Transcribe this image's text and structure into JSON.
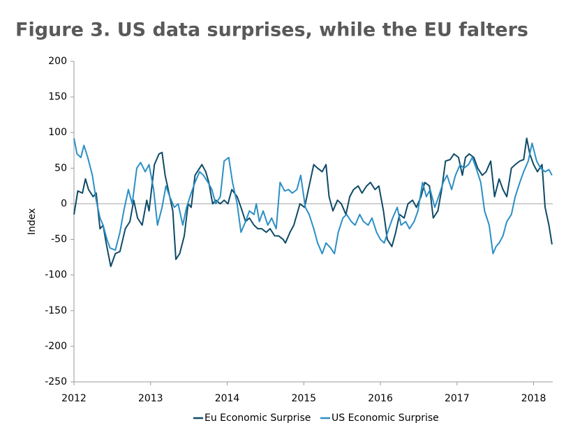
{
  "chart_data": {
    "type": "line",
    "title": "Figure 3.   US data surprises, while the EU falters",
    "y_label": "Index",
    "xlim": [
      2012,
      2018.25
    ],
    "xticks": [
      2012,
      2013,
      2014,
      2015,
      2016,
      2017,
      2018
    ],
    "ylim": [
      -250,
      200
    ],
    "yticks": [
      -250,
      -200,
      -150,
      -100,
      -50,
      0,
      50,
      100,
      150,
      200
    ],
    "grid": false,
    "legend": "bottom",
    "series": [
      {
        "name": "Eu Economic Surprise",
        "color": "#0e4a66",
        "x": [
          2012.0,
          2012.05,
          2012.11,
          2012.15,
          2012.19,
          2012.25,
          2012.29,
          2012.34,
          2012.38,
          2012.42,
          2012.48,
          2012.54,
          2012.6,
          2012.67,
          2012.73,
          2012.78,
          2012.83,
          2012.89,
          2012.95,
          2012.98,
          2013.05,
          2013.11,
          2013.15,
          2013.19,
          2013.25,
          2013.29,
          2013.33,
          2013.38,
          2013.44,
          2013.49,
          2013.53,
          2013.58,
          2013.64,
          2013.67,
          2013.72,
          2013.76,
          2013.81,
          2013.85,
          2013.91,
          2013.96,
          2014.01,
          2014.06,
          2014.13,
          2014.18,
          2014.24,
          2014.29,
          2014.35,
          2014.4,
          2014.45,
          2014.51,
          2014.56,
          2014.62,
          2014.67,
          2014.73,
          2014.76,
          2014.82,
          2014.87,
          2014.95,
          2015.01,
          2015.07,
          2015.13,
          2015.18,
          2015.24,
          2015.29,
          2015.33,
          2015.38,
          2015.44,
          2015.49,
          2015.55,
          2015.6,
          2015.65,
          2015.71,
          2015.76,
          2015.82,
          2015.87,
          2015.93,
          2015.98,
          2016.04,
          2016.09,
          2016.15,
          2016.2,
          2016.25,
          2016.31,
          2016.36,
          2016.42,
          2016.47,
          2016.53,
          2016.58,
          2016.64,
          2016.69,
          2016.75,
          2016.8,
          2016.85,
          2016.91,
          2016.96,
          2017.02,
          2017.07,
          2017.11,
          2017.16,
          2017.22,
          2017.27,
          2017.33,
          2017.38,
          2017.44,
          2017.49,
          2017.55,
          2017.6,
          2017.65,
          2017.71,
          2017.76,
          2017.82,
          2017.87,
          2017.91,
          2017.95,
          2018.0,
          2018.05,
          2018.11,
          2018.15,
          2018.2,
          2018.24
        ],
        "values": [
          -15,
          18,
          15,
          35,
          20,
          10,
          15,
          -35,
          -30,
          -55,
          -88,
          -70,
          -67,
          -35,
          -25,
          5,
          -20,
          -30,
          5,
          -10,
          55,
          70,
          72,
          40,
          10,
          -10,
          -78,
          -70,
          -45,
          0,
          -5,
          40,
          50,
          55,
          45,
          30,
          0,
          5,
          0,
          5,
          0,
          20,
          10,
          -5,
          -25,
          -20,
          -30,
          -35,
          -35,
          -40,
          -35,
          -45,
          -45,
          -50,
          -55,
          -40,
          -30,
          0,
          -5,
          25,
          55,
          50,
          45,
          55,
          10,
          -10,
          5,
          0,
          -15,
          10,
          20,
          25,
          15,
          25,
          30,
          20,
          25,
          -10,
          -50,
          -60,
          -40,
          -15,
          -20,
          0,
          5,
          -5,
          10,
          30,
          25,
          -20,
          -10,
          20,
          60,
          62,
          70,
          65,
          40,
          65,
          70,
          65,
          50,
          40,
          45,
          60,
          10,
          35,
          20,
          10,
          50,
          55,
          60,
          62,
          92,
          70,
          55,
          45,
          55,
          -5,
          -30,
          -57
        ]
      },
      {
        "name": "US Economic Surprise",
        "color": "#2b8fc5",
        "x": [
          2012.0,
          2012.04,
          2012.09,
          2012.13,
          2012.18,
          2012.24,
          2012.29,
          2012.34,
          2012.38,
          2012.43,
          2012.47,
          2012.54,
          2012.6,
          2012.65,
          2012.71,
          2012.76,
          2012.82,
          2012.87,
          2012.93,
          2012.98,
          2013.04,
          2013.09,
          2013.15,
          2013.2,
          2013.25,
          2013.31,
          2013.36,
          2013.42,
          2013.47,
          2013.53,
          2013.58,
          2013.64,
          2013.69,
          2013.75,
          2013.8,
          2013.85,
          2013.91,
          2013.96,
          2014.02,
          2014.07,
          2014.13,
          2014.18,
          2014.24,
          2014.29,
          2014.35,
          2014.38,
          2014.42,
          2014.47,
          2014.53,
          2014.58,
          2014.64,
          2014.69,
          2014.75,
          2014.8,
          2014.85,
          2014.91,
          2014.96,
          2015.02,
          2015.07,
          2015.13,
          2015.18,
          2015.24,
          2015.29,
          2015.35,
          2015.4,
          2015.45,
          2015.51,
          2015.56,
          2015.62,
          2015.67,
          2015.73,
          2015.78,
          2015.84,
          2015.89,
          2015.95,
          2016.0,
          2016.05,
          2016.11,
          2016.16,
          2016.22,
          2016.27,
          2016.33,
          2016.38,
          2016.44,
          2016.49,
          2016.55,
          2016.6,
          2016.65,
          2016.71,
          2016.76,
          2016.82,
          2016.87,
          2016.93,
          2016.98,
          2017.04,
          2017.09,
          2017.15,
          2017.2,
          2017.25,
          2017.31,
          2017.36,
          2017.42,
          2017.47,
          2017.51,
          2017.55,
          2017.6,
          2017.65,
          2017.71,
          2017.76,
          2017.82,
          2017.87,
          2017.93,
          2017.98,
          2018.04,
          2018.09,
          2018.15,
          2018.2,
          2018.24
        ],
        "values": [
          92,
          70,
          65,
          82,
          65,
          40,
          5,
          -20,
          -30,
          -50,
          -62,
          -65,
          -40,
          -10,
          20,
          0,
          50,
          58,
          45,
          55,
          20,
          -30,
          -5,
          25,
          10,
          -5,
          0,
          -30,
          -5,
          15,
          30,
          45,
          40,
          30,
          20,
          0,
          10,
          60,
          65,
          30,
          0,
          -40,
          -25,
          -10,
          -15,
          0,
          -25,
          -10,
          -30,
          -20,
          -35,
          30,
          18,
          20,
          15,
          20,
          40,
          -5,
          -15,
          -35,
          -55,
          -70,
          -55,
          -62,
          -70,
          -40,
          -20,
          -15,
          -25,
          -30,
          -15,
          -25,
          -30,
          -20,
          -40,
          -50,
          -55,
          -35,
          -20,
          -5,
          -30,
          -25,
          -35,
          -25,
          -10,
          30,
          10,
          20,
          -5,
          10,
          30,
          40,
          20,
          40,
          55,
          50,
          55,
          65,
          50,
          30,
          -10,
          -30,
          -70,
          -60,
          -55,
          -45,
          -25,
          -15,
          10,
          30,
          45,
          60,
          85,
          60,
          50,
          45,
          48,
          40
        ]
      }
    ]
  }
}
